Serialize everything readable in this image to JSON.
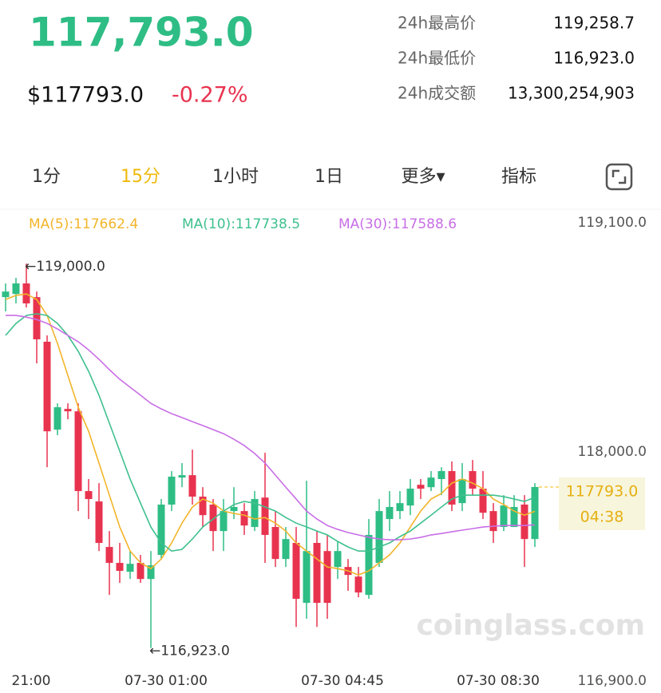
{
  "header": {
    "price": "117,793.0",
    "usd_price": "$117793.0",
    "change": "-0.27%",
    "stats": [
      {
        "label": "24h最高价",
        "value": "119,258.7"
      },
      {
        "label": "24h最低价",
        "value": "116,923.0"
      },
      {
        "label": "24h成交额",
        "value": "13,300,254,903"
      }
    ]
  },
  "tabs": [
    "1分",
    "15分",
    "1小时",
    "1日",
    "更多▾",
    "指标"
  ],
  "active_tab": 1,
  "chart_data": {
    "type": "candlestick",
    "categories": [
      null,
      null,
      "21:00",
      null,
      null,
      null,
      null,
      null,
      null,
      null,
      null,
      null,
      null,
      null,
      null,
      "07-30 01:00",
      null,
      null,
      null,
      null,
      null,
      null,
      null,
      null,
      null,
      null,
      null,
      null,
      null,
      null,
      null,
      null,
      "07-30 04:45",
      null,
      null,
      null,
      null,
      null,
      null,
      null,
      null,
      null,
      null,
      null,
      null,
      null,
      null,
      "07-30 08:30",
      null,
      null,
      null,
      null
    ],
    "open": [
      118819,
      118836,
      118893,
      118819,
      118578,
      118103,
      118215,
      118202,
      117771,
      117715,
      117469,
      117383,
      117335,
      117383,
      117296,
      117426,
      117698,
      117844,
      117857,
      117741,
      117698,
      117555,
      117663,
      117663,
      117577,
      117736,
      117577,
      117404,
      117491,
      117167,
      117491,
      117447,
      117361,
      117361,
      117309,
      117210,
      117383,
      117620,
      117663,
      117693,
      117805,
      117792,
      117836,
      117879,
      117706,
      117879,
      117784,
      117663,
      117577,
      117577,
      117698,
      117512
    ],
    "high": [
      118893,
      118923,
      119000,
      118849,
      118612,
      118245,
      118245,
      118245,
      117836,
      117814,
      117555,
      117491,
      117447,
      117426,
      117447,
      117728,
      117879,
      117922,
      117995,
      117792,
      117728,
      117728,
      117792,
      117706,
      117771,
      117978,
      117663,
      117577,
      117577,
      117827,
      117555,
      117534,
      117499,
      117404,
      117361,
      117620,
      117728,
      117771,
      117771,
      117836,
      117836,
      117879,
      117900,
      117931,
      117922,
      117939,
      117879,
      117706,
      117749,
      117749,
      117749,
      117814
    ],
    "low": [
      118742,
      118785,
      118763,
      118461,
      117900,
      118073,
      118159,
      117663,
      117620,
      117447,
      117210,
      117275,
      117296,
      117275,
      116923,
      117404,
      117663,
      117792,
      117698,
      117577,
      117447,
      117447,
      117620,
      117534,
      117555,
      117383,
      117361,
      117361,
      117037,
      117081,
      117037,
      117081,
      117296,
      117232,
      117197,
      117189,
      117361,
      117555,
      117620,
      117641,
      117728,
      117771,
      117749,
      117663,
      117663,
      117749,
      117620,
      117491,
      117555,
      117577,
      117361,
      117469
    ],
    "close": [
      118849,
      118893,
      118785,
      118591,
      118094,
      118224,
      118202,
      117771,
      117728,
      117491,
      117383,
      117340,
      117378,
      117296,
      117370,
      117698,
      117849,
      117857,
      117741,
      117641,
      117555,
      117663,
      117685,
      117585,
      117728,
      117534,
      117404,
      117512,
      117189,
      117447,
      117167,
      117167,
      117447,
      117318,
      117223,
      117534,
      117663,
      117685,
      117706,
      117784,
      117784,
      117844,
      117879,
      117698,
      117836,
      117784,
      117654,
      117555,
      117693,
      117685,
      117512,
      117793
    ],
    "colors": {
      "up": "#2ebd85",
      "down": "#e8334f"
    },
    "series": [
      {
        "name": "MA(5):117662.4",
        "color": "#f2b52a",
        "values": [
          118806,
          118828,
          118836,
          118806,
          118720,
          118569,
          118396,
          118224,
          118094,
          117922,
          117749,
          117577,
          117447,
          117383,
          117352,
          117404,
          117491,
          117598,
          117685,
          117728,
          117706,
          117663,
          117650,
          117641,
          117620,
          117628,
          117598,
          117555,
          117491,
          117447,
          117404,
          117361,
          117352,
          117340,
          117318,
          117340,
          117383,
          117426,
          117491,
          117577,
          117663,
          117728,
          117758,
          117814,
          117836,
          117814,
          117784,
          117728,
          117698,
          117663,
          117641,
          117662
        ]
      },
      {
        "name": "MA(10):117738.5",
        "color": "#3fc08e",
        "values": [
          118612,
          118677,
          118720,
          118729,
          118720,
          118677,
          118612,
          118526,
          118418,
          118289,
          118138,
          117987,
          117836,
          117706,
          117577,
          117491,
          117447,
          117456,
          117512,
          117577,
          117620,
          117663,
          117698,
          117715,
          117706,
          117685,
          117663,
          117628,
          117598,
          117577,
          117555,
          117534,
          117499,
          117469,
          117447,
          117447,
          117469,
          117491,
          117525,
          117555,
          117598,
          117641,
          117685,
          117728,
          117749,
          117749,
          117749,
          117749,
          117741,
          117728,
          117715,
          117738
        ]
      },
      {
        "name": "MA(30):117588.6",
        "color": "#c86ee6",
        "values": [
          118720,
          118720,
          118711,
          118698,
          118677,
          118647,
          118612,
          118578,
          118534,
          118483,
          118427,
          118375,
          118332,
          118289,
          118245,
          118215,
          118189,
          118168,
          118146,
          118125,
          118103,
          118081,
          118051,
          118017,
          117974,
          117922,
          117857,
          117792,
          117728,
          117663,
          117620,
          117585,
          117564,
          117547,
          117534,
          117521,
          117512,
          117508,
          117508,
          117512,
          117521,
          117534,
          117542,
          117551,
          117560,
          117568,
          117577,
          117581,
          117585,
          117585,
          117585,
          117589
        ]
      }
    ],
    "ylim": [
      116900,
      119100
    ],
    "yticks": [
      {
        "value": 119100,
        "label": "119,100.0"
      },
      {
        "value": 118000,
        "label": "118,000.0"
      },
      {
        "value": 116900,
        "label": "116,900.0"
      }
    ],
    "annotations": [
      {
        "text": "←119,000.0",
        "value": 119000
      },
      {
        "text": "←116,923.0",
        "value": 116923
      }
    ],
    "last_price_label": "117793.0",
    "countdown": "04:38",
    "watermark": "coinglass.com"
  }
}
